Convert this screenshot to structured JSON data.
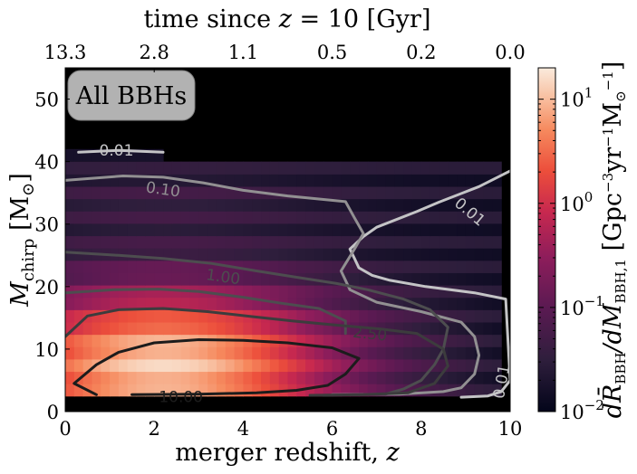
{
  "chart_data": {
    "type": "heatmap",
    "xlabel": "merger redshift, z",
    "ylabel": "M_chirp [M_⊙]",
    "top_xlabel": "time since z = 10 [Gyr]",
    "xlim": [
      0,
      10
    ],
    "ylim": [
      0,
      55
    ],
    "x_ticks": [
      "0",
      "2",
      "4",
      "6",
      "8",
      "10"
    ],
    "y_ticks": [
      "0",
      "10",
      "20",
      "30",
      "40",
      "50"
    ],
    "top_x_tick_positions_z": [
      0,
      2,
      4,
      6,
      8,
      10
    ],
    "top_x_ticks": [
      "13.3",
      "2.8",
      "1.1",
      "0.5",
      "0.2",
      "0.0"
    ],
    "panel_label": "All BBHs",
    "colorbar": {
      "label": "dR̄_BBH/dM_BBH,1 [Gpc^-3 yr^-1 M_⊙^-1]",
      "scale": "log",
      "range": [
        0.01,
        20
      ],
      "ticks": [
        "10^1",
        "10^0",
        "10^-1",
        "10^-2"
      ]
    },
    "contours": [
      {
        "level": "0.01",
        "color": "#c4c4c6",
        "segments": [
          [
            [
              0.3,
              41.5
            ],
            [
              1.2,
              41.8
            ],
            [
              2.2,
              41.5
            ]
          ],
          [
            [
              10.0,
              38.5
            ],
            [
              9.3,
              36.0
            ],
            [
              8.4,
              33.5
            ],
            [
              7.9,
              32.0
            ],
            [
              7.0,
              29.5
            ],
            [
              6.7,
              28.0
            ],
            [
              6.4,
              26.0
            ],
            [
              6.5,
              24.5
            ],
            [
              6.6,
              23.0
            ],
            [
              6.9,
              21.8
            ],
            [
              7.3,
              21.0
            ],
            [
              8.1,
              20.0
            ],
            [
              9.2,
              19.0
            ],
            [
              9.9,
              18.0
            ],
            [
              10.0,
              5.0
            ],
            [
              9.8,
              3.2
            ],
            [
              9.5,
              2.5
            ],
            [
              8.9,
              2.3
            ]
          ]
        ]
      },
      {
        "level": "0.10",
        "color": "#929092",
        "segments": [
          [
            [
              0.0,
              37.0
            ],
            [
              1.3,
              37.7
            ],
            [
              2.2,
              37.5
            ],
            [
              3.1,
              36.6
            ],
            [
              4.0,
              35.4
            ],
            [
              5.0,
              34.5
            ],
            [
              6.3,
              33.6
            ],
            [
              6.5,
              31.0
            ],
            [
              6.7,
              28.5
            ],
            [
              6.5,
              26.0
            ],
            [
              6.2,
              22.5
            ],
            [
              6.4,
              19.5
            ],
            [
              7.0,
              17.5
            ],
            [
              8.0,
              16.0
            ],
            [
              8.9,
              14.3
            ],
            [
              9.2,
              12.0
            ],
            [
              9.3,
              9.0
            ],
            [
              9.2,
              6.0
            ],
            [
              8.9,
              3.8
            ],
            [
              8.5,
              3.2
            ],
            [
              7.5,
              2.8
            ],
            [
              6.0,
              2.7
            ]
          ]
        ]
      },
      {
        "level": "1.00",
        "color": "#4d4d4f",
        "segments": [
          [
            [
              0.0,
              25.5
            ],
            [
              1.2,
              25.0
            ],
            [
              2.2,
              24.5
            ],
            [
              3.3,
              23.7
            ],
            [
              4.3,
              22.5
            ],
            [
              5.2,
              21.5
            ],
            [
              6.1,
              20.5
            ],
            [
              6.8,
              19.5
            ],
            [
              7.6,
              18.0
            ],
            [
              8.2,
              16.3
            ],
            [
              8.6,
              13.5
            ],
            [
              8.5,
              10.0
            ],
            [
              8.3,
              7.5
            ],
            [
              8.0,
              5.0
            ],
            [
              7.6,
              3.6
            ],
            [
              7.2,
              2.8
            ],
            [
              5.8,
              2.6
            ]
          ],
          [
            [
              0.0,
              19.0
            ],
            [
              1.1,
              19.5
            ],
            [
              2.1,
              19.6
            ],
            [
              3.0,
              19.2
            ],
            [
              4.0,
              18.3
            ],
            [
              4.8,
              17.4
            ],
            [
              5.7,
              16.5
            ],
            [
              6.3,
              14.5
            ],
            [
              6.3,
              12.5
            ]
          ]
        ]
      },
      {
        "level": "2.50",
        "color": "#3c3c3d",
        "segments": [
          [
            [
              0.0,
              12.0
            ],
            [
              0.5,
              15.3
            ],
            [
              1.2,
              16.3
            ],
            [
              2.2,
              16.5
            ],
            [
              3.2,
              16.0
            ],
            [
              4.2,
              15.2
            ],
            [
              5.1,
              14.5
            ],
            [
              6.0,
              13.9
            ],
            [
              7.1,
              13.2
            ],
            [
              7.9,
              12.5
            ],
            [
              8.5,
              10.0
            ],
            [
              8.6,
              7.3
            ],
            [
              8.3,
              4.5
            ],
            [
              7.7,
              3.0
            ],
            [
              6.7,
              2.7
            ],
            [
              5.5,
              2.6
            ]
          ]
        ]
      },
      {
        "level": "10.00",
        "color": "#1c1c1c",
        "segments": [
          [
            [
              0.7,
              2.7
            ],
            [
              0.2,
              4.5
            ],
            [
              0.7,
              7.5
            ],
            [
              1.2,
              9.5
            ],
            [
              2.0,
              11.0
            ],
            [
              3.0,
              11.5
            ],
            [
              4.0,
              11.4
            ],
            [
              5.0,
              11.0
            ],
            [
              6.0,
              10.2
            ],
            [
              6.6,
              8.5
            ],
            [
              6.3,
              6.0
            ],
            [
              5.9,
              4.2
            ],
            [
              5.2,
              3.4
            ],
            [
              4.3,
              3.0
            ],
            [
              3.0,
              2.8
            ],
            [
              1.5,
              2.7
            ]
          ]
        ]
      }
    ]
  }
}
